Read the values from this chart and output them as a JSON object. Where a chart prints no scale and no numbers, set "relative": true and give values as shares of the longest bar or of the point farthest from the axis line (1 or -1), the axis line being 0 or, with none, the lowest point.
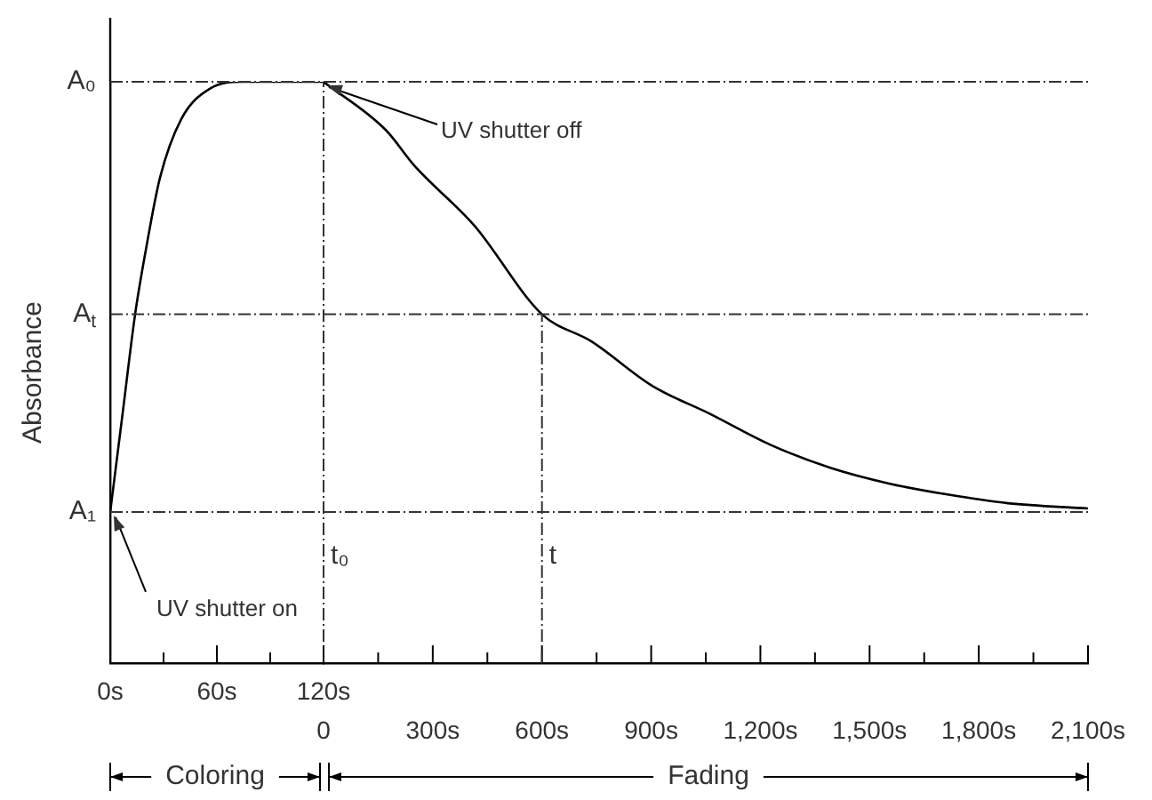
{
  "chart_data": [
    {
      "type": "line",
      "relative": true,
      "ylabel": "Absorbance",
      "xlim": [
        0,
        120
      ],
      "xticks": [
        {
          "value": 0,
          "label": "0s"
        },
        {
          "value": 30,
          "label": null
        },
        {
          "value": 60,
          "label": "60s"
        },
        {
          "value": 90,
          "label": null
        },
        {
          "value": 120,
          "label": "120s"
        }
      ],
      "series": [
        {
          "color": "#000000",
          "x": [
            0,
            7,
            14,
            20,
            28,
            40,
            56,
            75,
            120
          ],
          "values": [
            0.26,
            0.43,
            0.6,
            0.71,
            0.835,
            0.936,
            0.988,
            1,
            1
          ]
        }
      ],
      "ref_lines": [
        {
          "axis": "y",
          "value": 1,
          "label": "A₀",
          "color": "#333333"
        },
        {
          "axis": "y",
          "value": 0.6,
          "label": "A$_{t}$",
          "color": "#333333"
        },
        {
          "axis": "y",
          "value": 0.26,
          "label": "A₁",
          "color": "#333333"
        },
        {
          "axis": "x",
          "value": 120,
          "label": "t₀",
          "color": "#333333"
        }
      ],
      "annotations": [
        "Coloring",
        {
          "text": "UV shutter on",
          "x": 0,
          "y": 0.26
        }
      ]
    },
    {
      "type": "line",
      "relative": true,
      "tick_labels": "x",
      "xlim": [
        0,
        2100
      ],
      "xticks": [
        {
          "value": 0,
          "label": "0"
        },
        {
          "value": 150,
          "label": null
        },
        {
          "value": 300,
          "label": "300s"
        },
        {
          "value": 450,
          "label": null
        },
        {
          "value": 600,
          "label": "600s"
        },
        {
          "value": 750,
          "label": null
        },
        {
          "value": 900,
          "label": "900s"
        },
        {
          "value": 1050,
          "label": null
        },
        {
          "value": 1200,
          "label": "1,200s"
        },
        {
          "value": 1350,
          "label": null
        },
        {
          "value": 1500,
          "label": "1,500s"
        },
        {
          "value": 1650,
          "label": null
        },
        {
          "value": 1800,
          "label": "1,800s"
        },
        {
          "value": 1950,
          "label": null
        },
        {
          "value": 2100,
          "label": "2,100s"
        }
      ],
      "series": [
        {
          "color": "#000000",
          "x": [
            0,
            171,
            249,
            415,
            600,
            737,
            903,
            1064,
            1226,
            1392,
            1553,
            1714,
            1880,
            2100
          ],
          "values": [
            1,
            0.917,
            0.856,
            0.752,
            0.6,
            0.553,
            0.477,
            0.428,
            0.376,
            0.336,
            0.309,
            0.29,
            0.275,
            0.266
          ]
        }
      ],
      "ref_lines": [
        {
          "axis": "y",
          "value": 1,
          "color": "#333333"
        },
        {
          "axis": "y",
          "value": 0.6,
          "color": "#333333"
        },
        {
          "axis": "y",
          "value": 0.26,
          "color": "#333333"
        },
        {
          "axis": "x",
          "value": 600,
          "label": "t",
          "color": "#333333"
        }
      ],
      "annotations": [
        "Fading",
        {
          "text": "UV shutter off",
          "x": 0,
          "y": 1
        }
      ]
    }
  ]
}
